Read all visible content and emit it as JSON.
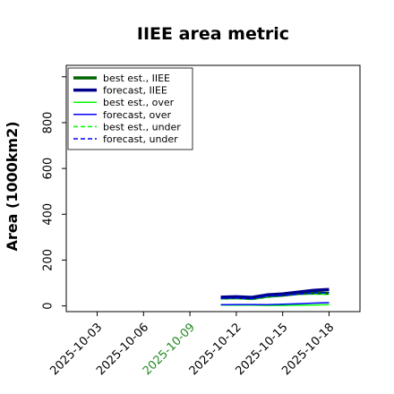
{
  "chart_data": {
    "type": "line",
    "title": "IIEE area metric",
    "xlabel": "",
    "ylabel": "Area (1000km2)",
    "ylim": [
      -25,
      1050
    ],
    "yticks": [
      0,
      200,
      400,
      600,
      800
    ],
    "x_range": [
      "2025-10-01",
      "2025-10-20"
    ],
    "xticks": [
      {
        "label": "2025-10-03",
        "color": "#000000"
      },
      {
        "label": "2025-10-06",
        "color": "#000000"
      },
      {
        "label": "2025-10-09",
        "color": "#228B22"
      },
      {
        "label": "2025-10-12",
        "color": "#000000"
      },
      {
        "label": "2025-10-15",
        "color": "#000000"
      },
      {
        "label": "2025-10-18",
        "color": "#000000"
      }
    ],
    "grid": false,
    "legend_position": "top-left",
    "series": [
      {
        "name": "best est., IIEE",
        "color": "#006400",
        "style": "solid",
        "weight": "thick",
        "x": [
          "2025-10-11",
          "2025-10-12",
          "2025-10-13",
          "2025-10-14",
          "2025-10-15",
          "2025-10-16",
          "2025-10-17",
          "2025-10-18"
        ],
        "values": [
          34,
          36,
          32,
          42,
          47,
          54,
          56,
          55
        ]
      },
      {
        "name": "forecast, IIEE",
        "color": "#00008B",
        "style": "solid",
        "weight": "thick",
        "x": [
          "2025-10-11",
          "2025-10-12",
          "2025-10-13",
          "2025-10-14",
          "2025-10-15",
          "2025-10-16",
          "2025-10-17",
          "2025-10-18"
        ],
        "values": [
          38,
          40,
          37,
          48,
          52,
          60,
          68,
          72
        ]
      },
      {
        "name": "best est., over",
        "color": "#00FF00",
        "style": "solid",
        "weight": "thin",
        "x": [
          "2025-10-11",
          "2025-10-12",
          "2025-10-13",
          "2025-10-14",
          "2025-10-15",
          "2025-10-16",
          "2025-10-17",
          "2025-10-18"
        ],
        "values": [
          3,
          4,
          3,
          2,
          2,
          3,
          4,
          5
        ]
      },
      {
        "name": "forecast, over",
        "color": "#0000FF",
        "style": "solid",
        "weight": "thin",
        "x": [
          "2025-10-11",
          "2025-10-12",
          "2025-10-13",
          "2025-10-14",
          "2025-10-15",
          "2025-10-16",
          "2025-10-17",
          "2025-10-18"
        ],
        "values": [
          5,
          6,
          6,
          5,
          7,
          9,
          12,
          14
        ]
      },
      {
        "name": "best est., under",
        "color": "#00FF00",
        "style": "dashed",
        "weight": "thin",
        "x": [
          "2025-10-11",
          "2025-10-12",
          "2025-10-13",
          "2025-10-14",
          "2025-10-15",
          "2025-10-16",
          "2025-10-17",
          "2025-10-18"
        ],
        "values": [
          31,
          32,
          29,
          40,
          45,
          51,
          52,
          50
        ]
      },
      {
        "name": "forecast, under",
        "color": "#0000FF",
        "style": "dashed",
        "weight": "thin",
        "x": [
          "2025-10-11",
          "2025-10-12",
          "2025-10-13",
          "2025-10-14",
          "2025-10-15",
          "2025-10-16",
          "2025-10-17",
          "2025-10-18"
        ],
        "values": [
          33,
          34,
          31,
          43,
          45,
          51,
          56,
          58
        ]
      }
    ]
  }
}
